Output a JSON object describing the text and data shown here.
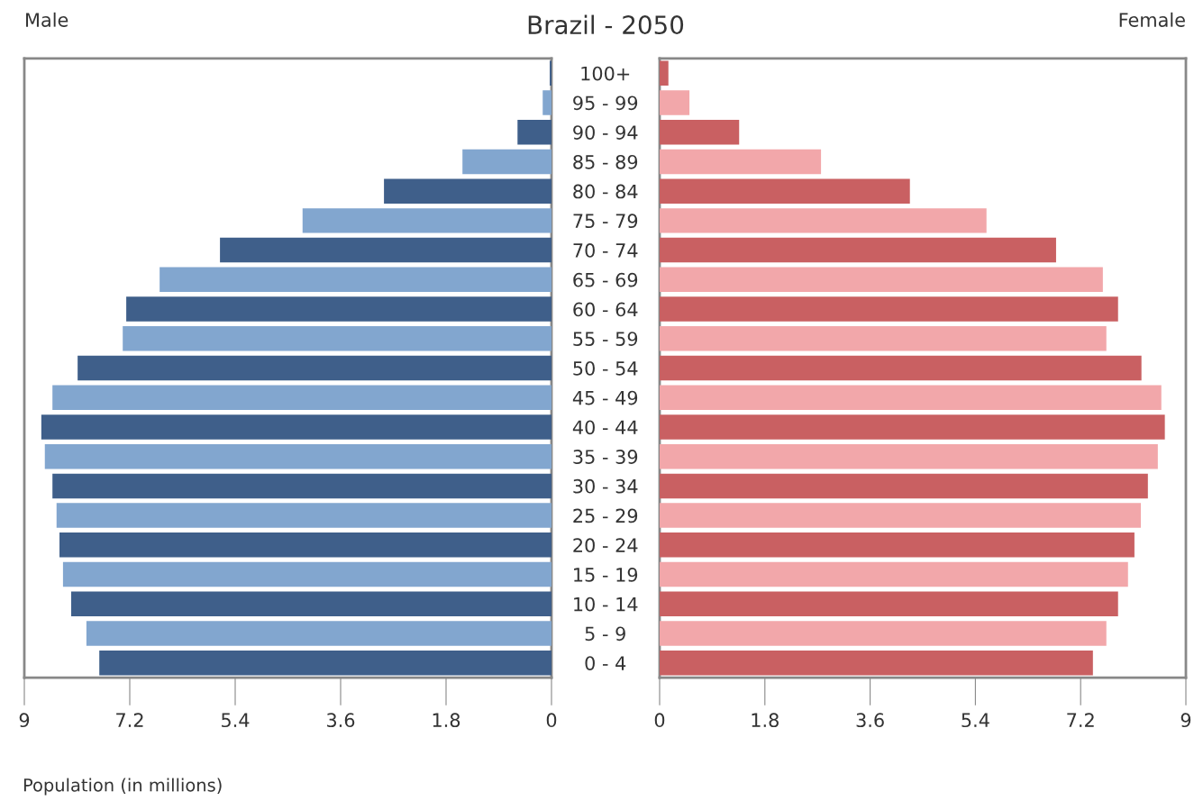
{
  "chart_data": [
    {
      "type": "bar",
      "orientation": "horizontal",
      "title": "Brazil - 2050",
      "xlabel": "Population (in millions)",
      "categories": [
        "100+",
        "95 - 99",
        "90 - 94",
        "85 - 89",
        "80 - 84",
        "75 - 79",
        "70 - 74",
        "65 - 69",
        "60 - 64",
        "55 - 59",
        "50 - 54",
        "45 - 49",
        "40 - 44",
        "35 - 39",
        "30 - 34",
        "25 - 29",
        "20 - 24",
        "15 - 19",
        "10 - 14",
        "5 - 9",
        "0 - 4"
      ],
      "series": [
        {
          "name": "Male",
          "colors": [
            "#3f5f8a",
            "#82a6cf",
            "#3f5f8a",
            "#82a6cf",
            "#3f5f8a",
            "#82a6cf",
            "#3f5f8a",
            "#82a6cf",
            "#3f5f8a",
            "#82a6cf",
            "#3f5f8a",
            "#82a6cf",
            "#3f5f8a",
            "#82a6cf",
            "#3f5f8a",
            "#82a6cf",
            "#3f5f8a",
            "#82a6cf",
            "#3f5f8a",
            "#82a6cf",
            "#3f5f8a"
          ],
          "values": [
            0.03,
            0.15,
            0.58,
            1.52,
            2.86,
            4.25,
            5.66,
            6.69,
            7.26,
            7.32,
            8.09,
            8.52,
            8.71,
            8.65,
            8.52,
            8.45,
            8.4,
            8.34,
            8.2,
            7.94,
            7.72
          ]
        }
      ],
      "xlim": [
        9,
        0
      ],
      "xticks": [
        9,
        7.2,
        5.4,
        3.6,
        1.8,
        0
      ],
      "grid": false
    },
    {
      "type": "bar",
      "orientation": "horizontal",
      "categories": [
        null,
        null,
        null,
        null,
        null,
        null,
        null,
        null,
        null,
        null,
        null,
        null,
        null,
        null,
        null,
        null,
        null,
        null,
        null,
        null,
        null
      ],
      "series": [
        {
          "name": "Female",
          "colors": [
            "#c96062",
            "#f2a7aa",
            "#c96062",
            "#f2a7aa",
            "#c96062",
            "#f2a7aa",
            "#c96062",
            "#f2a7aa",
            "#c96062",
            "#f2a7aa",
            "#c96062",
            "#f2a7aa",
            "#c96062",
            "#f2a7aa",
            "#c96062",
            "#f2a7aa",
            "#c96062",
            "#f2a7aa",
            "#c96062",
            "#f2a7aa",
            "#c96062"
          ],
          "values": [
            0.15,
            0.51,
            1.36,
            2.76,
            4.28,
            5.59,
            6.78,
            7.58,
            7.84,
            7.64,
            8.24,
            8.58,
            8.64,
            8.52,
            8.35,
            8.23,
            8.12,
            8.01,
            7.84,
            7.64,
            7.41
          ]
        }
      ],
      "xlim": [
        0,
        9
      ],
      "xticks": [
        0,
        1.8,
        3.6,
        5.4,
        7.2,
        9
      ],
      "grid": false
    }
  ]
}
